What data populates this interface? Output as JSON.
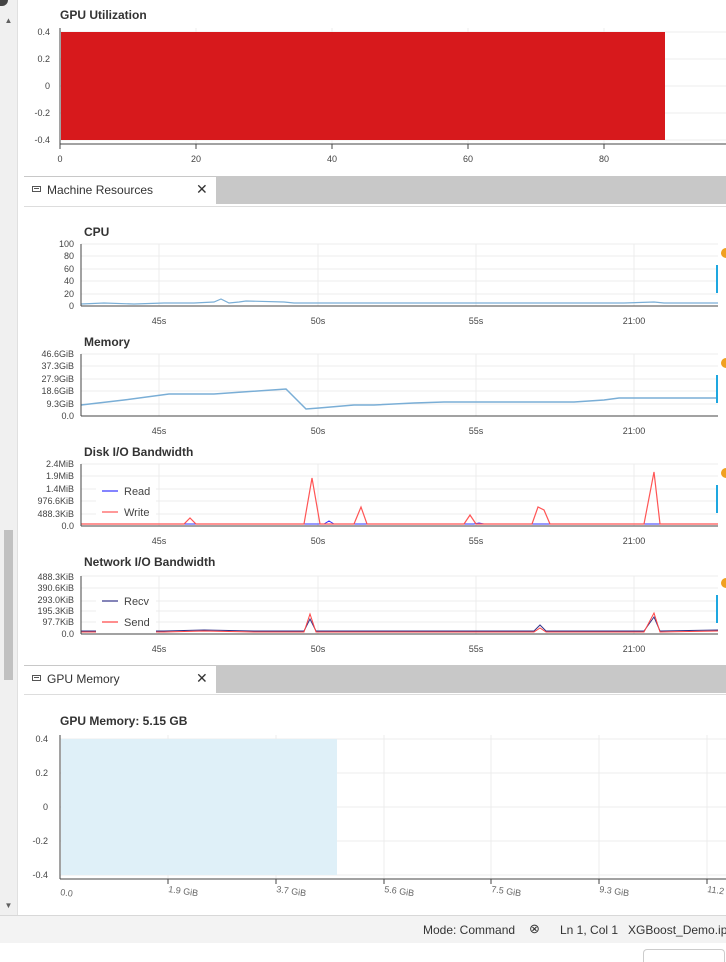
{
  "gpu_utilization": {
    "title": "GPU Utilization",
    "y_ticks": [
      "0.4",
      "0.2",
      "0",
      "-0.2",
      "-0.4"
    ],
    "x_ticks": [
      "0",
      "20",
      "40",
      "60",
      "80"
    ],
    "bar_color": "#d7191c",
    "bar_extent": {
      "x0": 0,
      "x1": 89,
      "y0": -0.4,
      "y1": 0.4
    }
  },
  "machine_tab": {
    "label": "Machine Resources",
    "close": "✕"
  },
  "cpu": {
    "title": "CPU",
    "y_ticks": [
      "100",
      "80",
      "60",
      "40",
      "20",
      "0"
    ],
    "x_ticks": [
      "45s",
      "50s",
      "55s",
      "21:00"
    ]
  },
  "memory": {
    "title": "Memory",
    "y_ticks": [
      "46.6GiB",
      "37.3GiB",
      "27.9GiB",
      "18.6GiB",
      "9.3GiB",
      "0.0"
    ],
    "x_ticks": [
      "45s",
      "50s",
      "55s",
      "21:00"
    ]
  },
  "disk": {
    "title": "Disk I/O Bandwidth",
    "y_ticks": [
      "2.4MiB",
      "1.9MiB",
      "1.4MiB",
      "976.6KiB",
      "488.3KiB",
      "0.0"
    ],
    "x_ticks": [
      "45s",
      "50s",
      "55s",
      "21:00"
    ],
    "legend": [
      "Read",
      "Write"
    ]
  },
  "network": {
    "title": "Network I/O Bandwidth",
    "y_ticks": [
      "488.3KiB",
      "390.6KiB",
      "293.0KiB",
      "195.3KiB",
      "97.7KiB",
      "0.0"
    ],
    "x_ticks": [
      "45s",
      "50s",
      "55s",
      "21:00"
    ],
    "legend": [
      "Recv",
      "Send"
    ]
  },
  "gpu_tab": {
    "label": "GPU Memory",
    "close": "✕"
  },
  "gpu_memory": {
    "title": "GPU Memory: 5.15 GB",
    "y_ticks": [
      "0.4",
      "0.2",
      "0",
      "-0.2",
      "-0.4"
    ],
    "x_ticks": [
      "0.0",
      "1.9 GiB",
      "3.7 GiB",
      "5.6 GiB",
      "7.5 GiB",
      "9.3 GiB",
      "11.2"
    ],
    "bar_color": "#dff0f8"
  },
  "status": {
    "mode": "Mode: Command",
    "position": "Ln 1, Col 1",
    "file": "XGBoost_Demo.ipy"
  },
  "colors": {
    "read": "#3333ff",
    "write": "#ff5555",
    "recv": "#333388",
    "send": "#ff4444",
    "line": "#7aaed6",
    "accent_orange": "#f0a020",
    "accent_blue": "#1ea7e0"
  }
}
